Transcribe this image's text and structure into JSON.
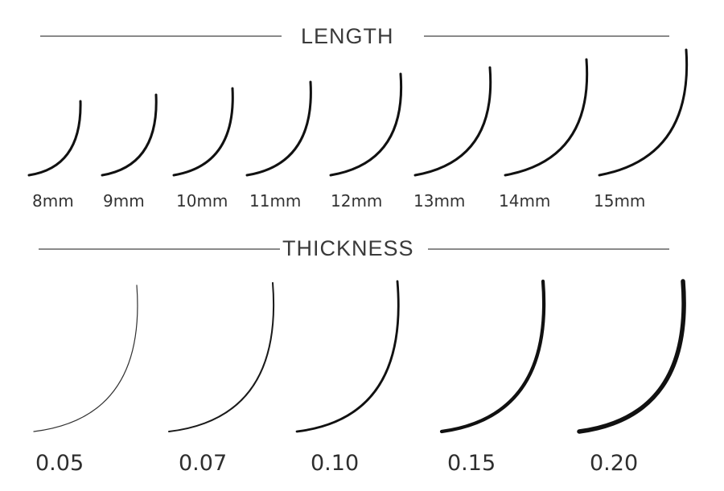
{
  "length_section": {
    "heading": "LENGTH",
    "items": [
      "8mm",
      "9mm",
      "10mm",
      "11mm",
      "12mm",
      "13mm",
      "14mm",
      "15mm"
    ]
  },
  "thickness_section": {
    "heading": "THICKNESS",
    "items": [
      "0.05",
      "0.07",
      "0.10",
      "0.15",
      "0.20"
    ]
  },
  "colors": {
    "curve": "#111111",
    "rule": "#8a8a8a",
    "text": "#333333"
  }
}
